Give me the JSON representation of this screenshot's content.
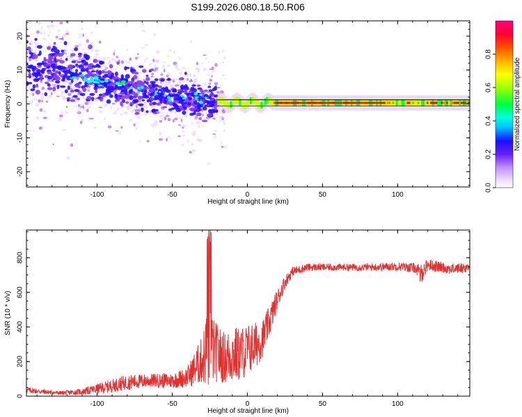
{
  "title": "S199.2026.080.18.50.R06",
  "chart_data": [
    {
      "type": "heatmap",
      "name": "spectrogram",
      "xlabel": "Height of straight line (km)",
      "ylabel": "Frequency (Hz)",
      "xlim": [
        -147,
        148
      ],
      "ylim": [
        -24.5,
        24.5
      ],
      "xticks": [
        -100,
        -50,
        0,
        50,
        100
      ],
      "yticks": [
        -20,
        -10,
        0,
        10,
        20
      ],
      "colorbar": {
        "label": "Normalized spectral amplitude",
        "range": [
          0.0,
          1.0
        ],
        "ticks": [
          "0.0",
          "0.2",
          "0.4",
          "0.6",
          "0.8"
        ],
        "colors": [
          "#ffffff",
          "#e8c8ff",
          "#8a3cf0",
          "#2a10ff",
          "#00ffff",
          "#00ff3c",
          "#c8ff00",
          "#ffd700",
          "#ff7a00",
          "#ff003c",
          "#ff0080"
        ]
      },
      "features": {
        "scatter_region_x": [
          -147,
          -20
        ],
        "scatter_center_freq": [
          [
            -147,
            12
          ],
          [
            -120,
            9
          ],
          [
            -90,
            6
          ],
          [
            -60,
            3
          ],
          [
            -30,
            1
          ],
          [
            -20,
            0.5
          ]
        ],
        "narrowband_region_x": [
          -20,
          148
        ],
        "narrowband_freq": 0.3
      }
    },
    {
      "type": "line",
      "name": "snr",
      "xlabel": "Height of straight line (km)",
      "ylabel": "SNR (10 * v/v)",
      "xlim": [
        -147,
        148
      ],
      "ylim": [
        0,
        960
      ],
      "xticks": [
        -100,
        -50,
        0,
        50,
        100
      ],
      "yticks": [
        0,
        200,
        400,
        600,
        800
      ],
      "color": "#e53030",
      "envelope": {
        "x": [
          -147,
          -135,
          -125,
          -110,
          -95,
          -80,
          -65,
          -50,
          -40,
          -30,
          -26,
          -22,
          -15,
          -10,
          -5,
          0,
          5,
          10,
          15,
          20,
          25,
          30,
          40,
          60,
          80,
          100,
          112,
          115,
          120,
          135,
          148
        ],
        "mean": [
          35,
          25,
          18,
          25,
          50,
          80,
          90,
          90,
          110,
          210,
          300,
          260,
          220,
          240,
          240,
          270,
          290,
          330,
          440,
          560,
          660,
          720,
          745,
          745,
          745,
          750,
          740,
          700,
          760,
          735,
          745
        ],
        "noise": [
          18,
          14,
          12,
          18,
          35,
          45,
          40,
          45,
          60,
          140,
          260,
          180,
          150,
          170,
          160,
          150,
          140,
          110,
          90,
          60,
          40,
          28,
          22,
          20,
          22,
          25,
          30,
          60,
          35,
          30,
          30
        ]
      }
    }
  ]
}
